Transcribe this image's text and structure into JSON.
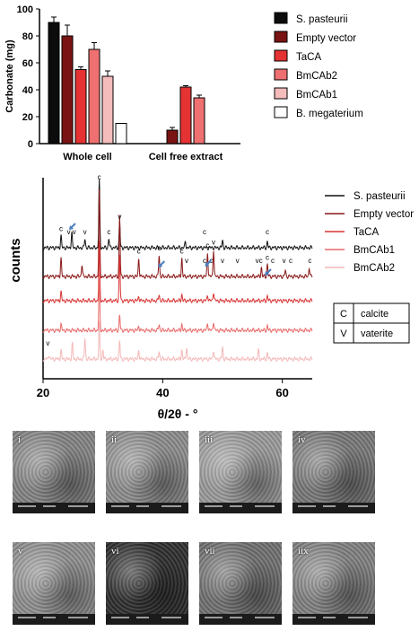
{
  "chart_data": [
    {
      "type": "bar",
      "ylabel": "Carbonate (mg)",
      "ylim": [
        0,
        100
      ],
      "yticks": [
        "0",
        "20",
        "40",
        "60",
        "80",
        "100"
      ],
      "groups": [
        "Whole cell",
        "Cell free extract"
      ],
      "series": [
        {
          "name": "S. pasteurii",
          "color": "#0c0c0c",
          "values": [
            90,
            null
          ],
          "errors": [
            4,
            null
          ]
        },
        {
          "name": "Empty vector",
          "color": "#7a1414",
          "values": [
            80,
            10
          ],
          "errors": [
            8,
            2
          ]
        },
        {
          "name": "TaCA",
          "color": "#e53232",
          "values": [
            55,
            42
          ],
          "errors": [
            2,
            1
          ]
        },
        {
          "name": "BmCAb2",
          "color": "#ee7070",
          "values": [
            70,
            34
          ],
          "errors": [
            5,
            2
          ]
        },
        {
          "name": "BmCAb1",
          "color": "#f5bcbc",
          "values": [
            50,
            null
          ],
          "errors": [
            4,
            null
          ]
        },
        {
          "name": "B. megaterium",
          "color": "#ffffff",
          "values": [
            15,
            null
          ],
          "errors": [
            0,
            null
          ]
        }
      ],
      "legend": "right"
    },
    {
      "type": "line",
      "xlabel": "θ/2θ - °",
      "ylabel": "counts",
      "xlim": [
        20,
        65
      ],
      "xticks": [
        "20",
        "40",
        "60"
      ],
      "legend": "right",
      "series": [
        {
          "name": "S. pasteurii",
          "color": "#111111",
          "offset": 4,
          "peaks": [
            [
              23,
              0.4
            ],
            [
              24.8,
              0.5
            ],
            [
              27,
              0.3
            ],
            [
              29.4,
              2.2
            ],
            [
              31,
              0.3
            ],
            [
              32.8,
              0.8
            ],
            [
              43.8,
              0.2
            ],
            [
              50,
              0.25
            ],
            [
              57.5,
              0.2
            ]
          ]
        },
        {
          "name": "Empty vector",
          "color": "#8a1717",
          "offset": 3,
          "peaks": [
            [
              23,
              0.6
            ],
            [
              26.5,
              0.4
            ],
            [
              29.4,
              2.8
            ],
            [
              32.8,
              2.0
            ],
            [
              36,
              0.6
            ],
            [
              39.4,
              0.7
            ],
            [
              43.2,
              0.6
            ],
            [
              47.5,
              0.8
            ],
            [
              48.5,
              0.9
            ],
            [
              56.5,
              0.3
            ],
            [
              57.5,
              0.4
            ],
            [
              60.5,
              0.2
            ],
            [
              64.5,
              0.3
            ]
          ]
        },
        {
          "name": "TaCA",
          "color": "#d83434",
          "offset": 2,
          "peaks": [
            [
              23,
              0.3
            ],
            [
              29.4,
              1.9
            ],
            [
              32.8,
              1.5
            ],
            [
              36,
              0.15
            ],
            [
              39.4,
              0.2
            ],
            [
              43.2,
              0.2
            ],
            [
              47.5,
              0.2
            ],
            [
              48.5,
              0.3
            ],
            [
              57.5,
              0.15
            ]
          ]
        },
        {
          "name": "BmCAb1",
          "color": "#e86a6a",
          "offset": 1,
          "peaks": [
            [
              23,
              0.2
            ],
            [
              29.4,
              1.8
            ],
            [
              32.8,
              0.5
            ],
            [
              36,
              0.15
            ],
            [
              39.4,
              0.2
            ],
            [
              43.2,
              0.2
            ],
            [
              47.5,
              0.25
            ],
            [
              48.5,
              0.3
            ],
            [
              57.5,
              0.15
            ]
          ]
        },
        {
          "name": "BmCAb2",
          "color": "#f4b8b8",
          "offset": 0,
          "peaks": [
            [
              21,
              0.15
            ],
            [
              23,
              0.3
            ],
            [
              24.9,
              0.5
            ],
            [
              27,
              0.7
            ],
            [
              29.4,
              1.2
            ],
            [
              30,
              0.3
            ],
            [
              32.8,
              0.6
            ],
            [
              36,
              0.3
            ],
            [
              39.4,
              0.25
            ],
            [
              43.2,
              0.3
            ],
            [
              44,
              0.4
            ],
            [
              48.5,
              0.3
            ],
            [
              50,
              0.4
            ],
            [
              56,
              0.3
            ],
            [
              57.5,
              0.2
            ]
          ]
        }
      ],
      "annotations": [
        {
          "text": "c",
          "x": 23,
          "series": "S. pasteurii"
        },
        {
          "text": "v",
          "x": 24.3,
          "series": "S. pasteurii"
        },
        {
          "text": "v",
          "x": 25.2,
          "series": "S. pasteurii"
        },
        {
          "text": "v",
          "x": 27,
          "series": "S. pasteurii"
        },
        {
          "text": "c",
          "x": 29.4,
          "series": "S. pasteurii"
        },
        {
          "text": "c",
          "x": 31,
          "series": "S. pasteurii"
        },
        {
          "text": "v",
          "x": 32.8,
          "series": "S. pasteurii"
        },
        {
          "text": "c",
          "x": 47,
          "series": "S. pasteurii"
        },
        {
          "text": "c",
          "x": 57.5,
          "series": "S. pasteurii"
        },
        {
          "text": "c",
          "x": 36,
          "series": "Empty vector"
        },
        {
          "text": "c",
          "x": 39.4,
          "series": "Empty vector"
        },
        {
          "text": "c",
          "x": 43.2,
          "series": "Empty vector"
        },
        {
          "text": "v",
          "x": 44,
          "series": "Empty vector"
        },
        {
          "text": "c",
          "x": 47,
          "series": "Empty vector"
        },
        {
          "text": "c",
          "x": 47.5,
          "series": "Empty vector"
        },
        {
          "text": "v",
          "x": 48.5,
          "series": "Empty vector"
        },
        {
          "text": "c",
          "x": 48.1,
          "series": "Empty vector"
        },
        {
          "text": "v",
          "x": 50,
          "series": "Empty vector"
        },
        {
          "text": "v",
          "x": 52.5,
          "series": "Empty vector"
        },
        {
          "text": "v",
          "x": 55.8,
          "series": "Empty vector"
        },
        {
          "text": "c",
          "x": 56.4,
          "series": "Empty vector"
        },
        {
          "text": "c",
          "x": 57.5,
          "series": "Empty vector"
        },
        {
          "text": "c",
          "x": 58.4,
          "series": "Empty vector"
        },
        {
          "text": "v",
          "x": 60.3,
          "series": "Empty vector"
        },
        {
          "text": "c",
          "x": 61.4,
          "series": "Empty vector"
        },
        {
          "text": "c",
          "x": 64.6,
          "series": "Empty vector"
        },
        {
          "text": "v",
          "x": 20.8,
          "series": "BmCAb2"
        }
      ],
      "key_table": [
        [
          "C",
          "calcite"
        ],
        [
          "V",
          "vaterite"
        ]
      ]
    }
  ],
  "sem_panels": [
    {
      "label": "i",
      "tone": "#838383"
    },
    {
      "label": "ii",
      "tone": "#8c8c8c"
    },
    {
      "label": "iii",
      "tone": "#9a9a9a"
    },
    {
      "label": "iv",
      "tone": "#777777"
    },
    {
      "label": "v",
      "tone": "#8e8e8e"
    },
    {
      "label": "vi",
      "tone": "#2e2e2e"
    },
    {
      "label": "vii",
      "tone": "#6f6f6f"
    },
    {
      "label": "iix",
      "tone": "#808080"
    }
  ]
}
